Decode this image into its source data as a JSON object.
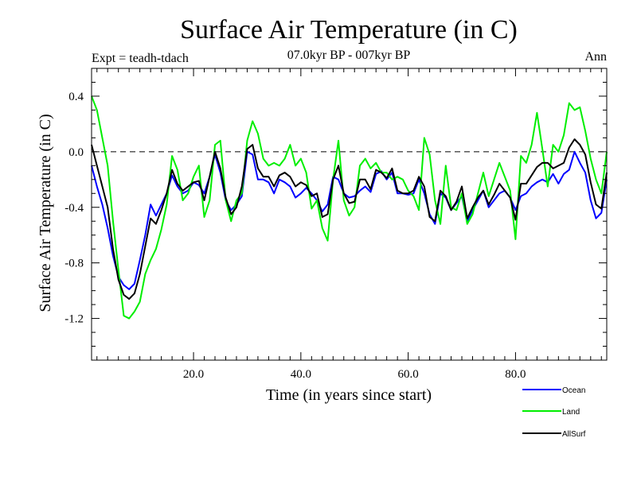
{
  "chart_data": {
    "type": "line",
    "title": "Surface Air Temperature (in C)",
    "subtitle": "07.0kyr BP - 007kyr BP",
    "left_label": "Expt = teadh-tdach",
    "right_label": "Ann",
    "xlabel": "Time (in years since start)",
    "ylabel": "Surface Air Temperature (in C)",
    "xlim": [
      1,
      97
    ],
    "ylim": [
      -1.5,
      0.6
    ],
    "x_ticks": [
      20,
      40,
      60,
      80
    ],
    "x_tick_labels": [
      "20.0",
      "40.0",
      "60.0",
      "80.0"
    ],
    "y_ticks": [
      0.4,
      0.0,
      -0.4,
      -0.8,
      -1.2
    ],
    "y_tick_labels": [
      "0.4",
      "0.0",
      "-0.4",
      "-0.8",
      "-1.2"
    ],
    "reference_line": 0.0,
    "x_start": 1,
    "series": [
      {
        "name": "Ocean",
        "color": "#0000ff",
        "values": [
          -0.1,
          -0.25,
          -0.38,
          -0.55,
          -0.75,
          -0.9,
          -0.96,
          -0.99,
          -0.95,
          -0.78,
          -0.6,
          -0.38,
          -0.46,
          -0.38,
          -0.3,
          -0.17,
          -0.25,
          -0.3,
          -0.28,
          -0.22,
          -0.24,
          -0.3,
          -0.18,
          -0.02,
          -0.15,
          -0.35,
          -0.42,
          -0.38,
          -0.32,
          0.0,
          -0.02,
          -0.2,
          -0.2,
          -0.22,
          -0.3,
          -0.2,
          -0.22,
          -0.25,
          -0.33,
          -0.3,
          -0.26,
          -0.3,
          -0.35,
          -0.43,
          -0.38,
          -0.18,
          -0.2,
          -0.3,
          -0.33,
          -0.32,
          -0.28,
          -0.25,
          -0.29,
          -0.16,
          -0.14,
          -0.2,
          -0.15,
          -0.3,
          -0.3,
          -0.31,
          -0.3,
          -0.2,
          -0.3,
          -0.45,
          -0.52,
          -0.3,
          -0.33,
          -0.42,
          -0.37,
          -0.32,
          -0.5,
          -0.42,
          -0.35,
          -0.28,
          -0.4,
          -0.35,
          -0.3,
          -0.28,
          -0.33,
          -0.42,
          -0.32,
          -0.3,
          -0.25,
          -0.22,
          -0.2,
          -0.22,
          -0.16,
          -0.23,
          -0.16,
          -0.13,
          0.0,
          -0.08,
          -0.15,
          -0.35,
          -0.48,
          -0.44,
          -0.2
        ]
      },
      {
        "name": "Land",
        "color": "#00ee00",
        "values": [
          0.4,
          0.3,
          0.1,
          -0.1,
          -0.5,
          -0.85,
          -1.18,
          -1.2,
          -1.15,
          -1.08,
          -0.88,
          -0.78,
          -0.7,
          -0.56,
          -0.38,
          -0.03,
          -0.13,
          -0.35,
          -0.3,
          -0.18,
          -0.1,
          -0.47,
          -0.35,
          0.05,
          0.08,
          -0.35,
          -0.5,
          -0.35,
          -0.3,
          0.08,
          0.22,
          0.13,
          -0.05,
          -0.1,
          -0.08,
          -0.1,
          -0.05,
          0.05,
          -0.1,
          -0.05,
          -0.15,
          -0.41,
          -0.35,
          -0.55,
          -0.64,
          -0.2,
          0.08,
          -0.35,
          -0.46,
          -0.4,
          -0.1,
          -0.05,
          -0.12,
          -0.08,
          -0.15,
          -0.15,
          -0.2,
          -0.18,
          -0.2,
          -0.28,
          -0.32,
          -0.42,
          0.1,
          -0.02,
          -0.35,
          -0.52,
          -0.1,
          -0.4,
          -0.42,
          -0.3,
          -0.52,
          -0.45,
          -0.3,
          -0.15,
          -0.32,
          -0.2,
          -0.08,
          -0.18,
          -0.28,
          -0.63,
          -0.03,
          -0.08,
          0.05,
          0.28,
          0.02,
          -0.25,
          0.05,
          0.0,
          0.12,
          0.35,
          0.3,
          0.32,
          0.15,
          -0.05,
          -0.2,
          -0.3,
          0.0
        ]
      },
      {
        "name": "AllSurf",
        "color": "#000000",
        "values": [
          0.05,
          -0.1,
          -0.25,
          -0.4,
          -0.7,
          -0.92,
          -1.03,
          -1.06,
          -1.02,
          -0.88,
          -0.68,
          -0.48,
          -0.52,
          -0.42,
          -0.3,
          -0.13,
          -0.23,
          -0.28,
          -0.25,
          -0.22,
          -0.21,
          -0.35,
          -0.18,
          0.0,
          -0.12,
          -0.33,
          -0.45,
          -0.4,
          -0.25,
          0.02,
          0.05,
          -0.12,
          -0.18,
          -0.18,
          -0.25,
          -0.17,
          -0.15,
          -0.18,
          -0.25,
          -0.22,
          -0.24,
          -0.32,
          -0.3,
          -0.47,
          -0.45,
          -0.2,
          -0.1,
          -0.3,
          -0.37,
          -0.36,
          -0.2,
          -0.2,
          -0.27,
          -0.13,
          -0.15,
          -0.19,
          -0.12,
          -0.28,
          -0.3,
          -0.3,
          -0.28,
          -0.18,
          -0.25,
          -0.47,
          -0.5,
          -0.28,
          -0.32,
          -0.42,
          -0.36,
          -0.25,
          -0.48,
          -0.4,
          -0.33,
          -0.28,
          -0.38,
          -0.31,
          -0.23,
          -0.28,
          -0.33,
          -0.49,
          -0.23,
          -0.23,
          -0.17,
          -0.11,
          -0.08,
          -0.08,
          -0.12,
          -0.1,
          -0.08,
          0.03,
          0.09,
          0.05,
          -0.02,
          -0.22,
          -0.38,
          -0.41,
          -0.15
        ]
      }
    ]
  }
}
